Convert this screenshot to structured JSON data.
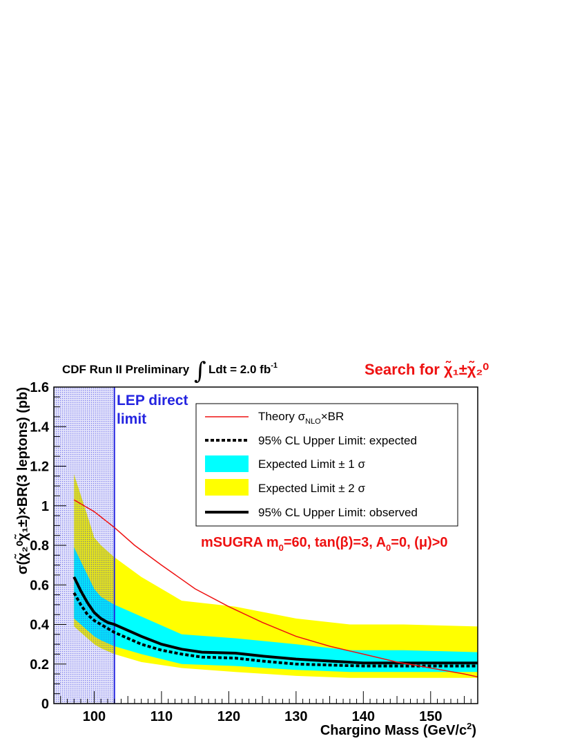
{
  "header": {
    "experiment": "CDF Run II Preliminary",
    "integral_sign": "∫",
    "luminosity": "Ldt = 2.0 fb",
    "luminosity_exp": "-1",
    "search_prefix": "Search for ",
    "search_particles": "χ̃₁±χ̃₂⁰"
  },
  "annotations": {
    "lep_line1": "LEP direct",
    "lep_line2": "limit",
    "model": "mSUGRA m",
    "model_sub0": "0",
    "model_mid": "=60, tan(β)=3, A",
    "model_sub1": "0",
    "model_end": "=0, (μ)>0"
  },
  "legend": {
    "theory": "Theory σ",
    "theory_sub": "NLO",
    "theory_end": "×BR",
    "expected": "95% CL Upper Limit: expected",
    "one_sigma": "Expected Limit ± 1 σ",
    "two_sigma": "Expected Limit ± 2 σ",
    "observed": "95% CL Upper Limit: observed"
  },
  "colors": {
    "theory": "#ee1111",
    "one_sigma": "#00ffff",
    "two_sigma": "#ffff00",
    "lep_fill": "#2a2ae0",
    "lep_line": "#2424e0"
  },
  "chart_data": {
    "type": "line",
    "xlabel": "Chargino Mass (GeV/c",
    "xlabel_exp": "2",
    "xlabel_end": ")",
    "ylabel": "σ(χ̃₂⁰χ̃₁±)×BR(3 leptons) (pb)",
    "xlim": [
      94,
      157
    ],
    "ylim": [
      0,
      1.6
    ],
    "x_ticks": [
      100,
      110,
      120,
      130,
      140,
      150
    ],
    "y_ticks": [
      0,
      0.2,
      0.4,
      0.6,
      0.8,
      1,
      1.2,
      1.4,
      1.6
    ],
    "x_tick_labels": [
      "100",
      "110",
      "120",
      "130",
      "140",
      "150"
    ],
    "y_tick_labels": [
      "0",
      "0.2",
      "0.4",
      "0.6",
      "0.8",
      "1",
      "1.2",
      "1.4",
      "1.6"
    ],
    "lep_excluded_below": 103,
    "band_x": [
      97,
      99,
      100,
      101,
      103,
      107,
      113,
      121,
      130,
      138,
      146,
      157
    ],
    "two_sigma_upper": [
      1.16,
      0.95,
      0.84,
      0.8,
      0.74,
      0.64,
      0.52,
      0.49,
      0.43,
      0.4,
      0.4,
      0.39
    ],
    "two_sigma_lower": [
      0.39,
      0.33,
      0.3,
      0.28,
      0.25,
      0.21,
      0.18,
      0.16,
      0.14,
      0.13,
      0.13,
      0.13
    ],
    "one_sigma_upper": [
      0.79,
      0.65,
      0.58,
      0.54,
      0.5,
      0.44,
      0.35,
      0.33,
      0.3,
      0.27,
      0.27,
      0.26
    ],
    "one_sigma_lower": [
      0.43,
      0.37,
      0.34,
      0.32,
      0.29,
      0.25,
      0.2,
      0.19,
      0.17,
      0.16,
      0.16,
      0.16
    ],
    "series": [
      {
        "name": "Theory σNLO×BR",
        "x": [
          97,
          100,
          103,
          106,
          110,
          115,
          120,
          125,
          130,
          135,
          140,
          145,
          150,
          155,
          157
        ],
        "values": [
          1.03,
          0.97,
          0.89,
          0.8,
          0.7,
          0.58,
          0.49,
          0.41,
          0.34,
          0.29,
          0.25,
          0.21,
          0.18,
          0.15,
          0.135
        ]
      },
      {
        "name": "95% CL Upper Limit: expected",
        "x": [
          97,
          98,
          99,
          100,
          101,
          102,
          103,
          105,
          107,
          110,
          113,
          116,
          121,
          125,
          130,
          135,
          140,
          145,
          150,
          157
        ],
        "values": [
          0.56,
          0.5,
          0.45,
          0.42,
          0.4,
          0.38,
          0.36,
          0.33,
          0.3,
          0.27,
          0.25,
          0.235,
          0.23,
          0.215,
          0.2,
          0.195,
          0.19,
          0.19,
          0.19,
          0.19
        ]
      },
      {
        "name": "95% CL Upper Limit: observed",
        "x": [
          97,
          98,
          99,
          100,
          101,
          102,
          103,
          105,
          107,
          110,
          113,
          116,
          121,
          125,
          130,
          135,
          140,
          145,
          150,
          157
        ],
        "values": [
          0.64,
          0.57,
          0.51,
          0.46,
          0.43,
          0.41,
          0.4,
          0.37,
          0.34,
          0.3,
          0.275,
          0.26,
          0.255,
          0.24,
          0.225,
          0.215,
          0.205,
          0.205,
          0.205,
          0.205
        ]
      }
    ]
  }
}
